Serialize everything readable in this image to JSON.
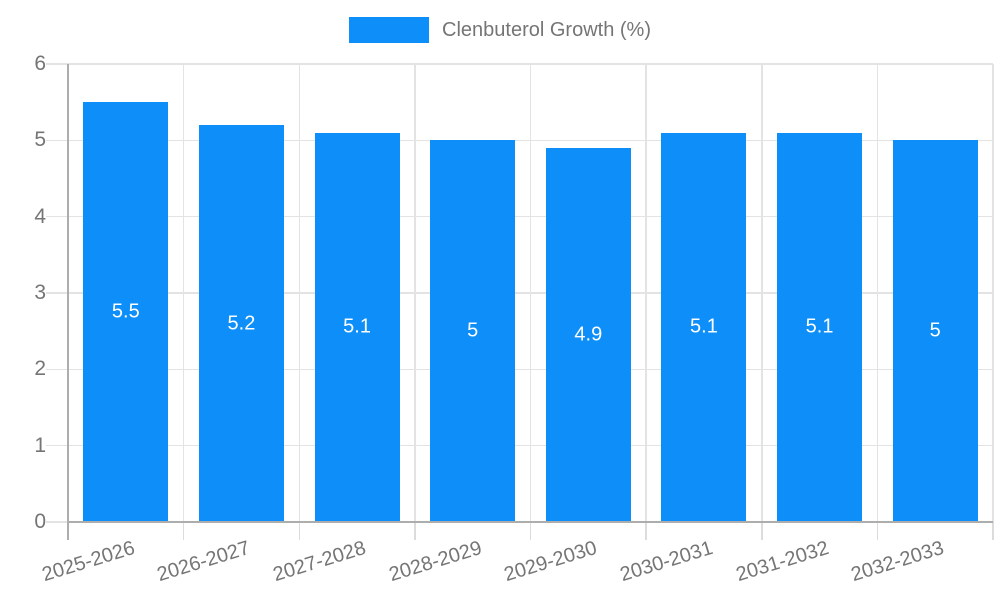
{
  "chart_data": {
    "type": "bar",
    "title": "",
    "xlabel": "",
    "ylabel": "",
    "legend": {
      "label": "Clenbuterol Growth (%)",
      "position": "top"
    },
    "categories": [
      "2025-2026",
      "2026-2027",
      "2027-2028",
      "2028-2029",
      "2029-2030",
      "2030-2031",
      "2031-2032",
      "2032-2033"
    ],
    "values": [
      5.5,
      5.2,
      5.1,
      5,
      4.9,
      5.1,
      5.1,
      5
    ],
    "value_labels": [
      "5.5",
      "5.2",
      "5.1",
      "5",
      "4.9",
      "5.1",
      "5.1",
      "5"
    ],
    "ylim": [
      0,
      6
    ],
    "yticks": [
      0,
      1,
      2,
      3,
      4,
      5,
      6
    ],
    "grid": true,
    "colors": {
      "bar": "#0d8ef8",
      "grid": "#e3e3e3",
      "tick": "#dcdcdc",
      "axis": "#adadad",
      "text": "#757575",
      "value_label": "#ffffff",
      "background": "#ffffff"
    }
  }
}
